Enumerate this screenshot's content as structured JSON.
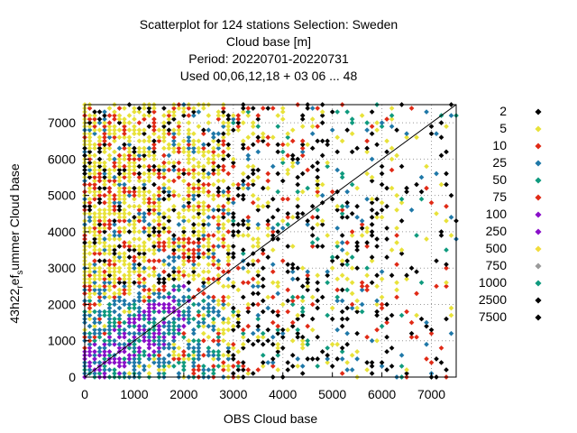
{
  "title": {
    "line1": "Scatterplot for  124 stations Selection: Sweden",
    "line2": "Cloud base [m]",
    "line3": "Period: 20220701-20220731",
    "line4": "Used  00,06,12,18  + 03 06 ... 48"
  },
  "chart_data": {
    "type": "scatter",
    "xlabel": "OBS Cloud base",
    "ylabel": {
      "prefix": "43h22",
      "sub1": "r",
      "mid": "ef",
      "sub2": "s",
      "suffix": "ummer Cloud base"
    },
    "xlim": [
      0,
      7500
    ],
    "ylim": [
      0,
      7500
    ],
    "xticks": [
      0,
      1000,
      2000,
      3000,
      4000,
      5000,
      6000,
      7000
    ],
    "yticks": [
      0,
      1000,
      2000,
      3000,
      4000,
      5000,
      6000,
      7000
    ],
    "grid": true,
    "diagonal": true,
    "legend_position": "right",
    "legend": [
      {
        "label": "2",
        "color": "#000000"
      },
      {
        "label": "5",
        "color": "#e8e23a"
      },
      {
        "label": "10",
        "color": "#e02a16"
      },
      {
        "label": "25",
        "color": "#1f78a8"
      },
      {
        "label": "50",
        "color": "#0f9a7e"
      },
      {
        "label": "75",
        "color": "#e02a16"
      },
      {
        "label": "100",
        "color": "#8a0fc9"
      },
      {
        "label": "250",
        "color": "#8a0fc9"
      },
      {
        "label": "500",
        "color": "#f2dc3c"
      },
      {
        "label": "750",
        "color": "#9a9a9a"
      },
      {
        "label": "1000",
        "color": "#0f9a7e"
      },
      {
        "label": "2500",
        "color": "#000000"
      },
      {
        "label": "7500",
        "color": "#000000"
      }
    ]
  }
}
